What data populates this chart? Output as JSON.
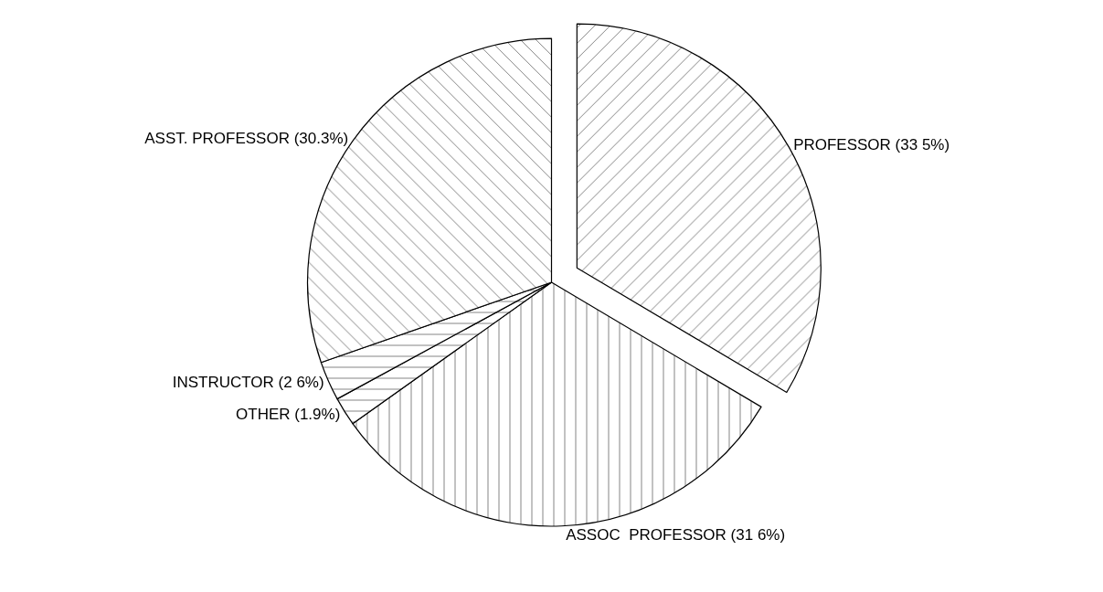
{
  "chart_data": {
    "type": "pie",
    "categories": [
      "PROFESSOR (33 5%)",
      "ASSOC  PROFESSOR (31 6%)",
      "OTHER (1.9%)",
      "INSTRUCTOR (2 6%)",
      "ASST. PROFESSOR (30.3%)"
    ],
    "values": [
      33.5,
      31.6,
      1.9,
      2.6,
      30.3
    ],
    "colors": [
      "#000000",
      "#000000",
      "#000000",
      "#000000",
      "#000000"
    ],
    "legend": false
  }
}
